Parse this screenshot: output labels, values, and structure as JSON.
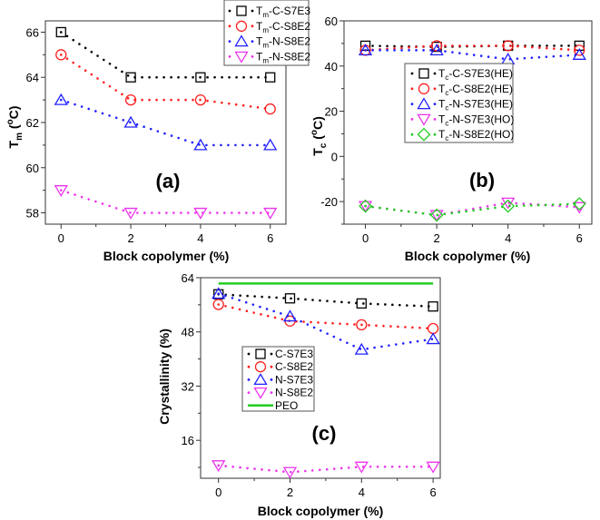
{
  "chart_data": [
    {
      "type": "line",
      "panel_label": "(a)",
      "xlabel": "Block copolymer (%)",
      "ylabel": {
        "base": "T",
        "sub": "m",
        "open": " (",
        "sup": "o",
        "close": "C)"
      },
      "x": [
        0,
        2,
        4,
        6
      ],
      "xlim": [
        -0.45,
        6.45
      ],
      "ylim": [
        57.5,
        66.5
      ],
      "xticks": [
        0,
        2,
        4,
        6
      ],
      "yticks": [
        58,
        60,
        62,
        64,
        66
      ],
      "minor_x": [
        1,
        3,
        5
      ],
      "minor_y": [
        59,
        61,
        63,
        65
      ],
      "legend_position": "top-right",
      "series": [
        {
          "name": {
            "base": "T",
            "sub": "m",
            "rest": "-C-S7E3"
          },
          "color": "#000000",
          "marker": "square",
          "values": [
            66,
            64,
            64,
            64
          ]
        },
        {
          "name": {
            "base": "T",
            "sub": "m",
            "rest": "-C-S8E2"
          },
          "color": "#ff2020",
          "marker": "circle",
          "values": [
            65,
            63,
            63,
            62.6
          ]
        },
        {
          "name": {
            "base": "T",
            "sub": "m",
            "rest": "-N-S8E2"
          },
          "color": "#2020ff",
          "marker": "triangle-up",
          "values": [
            63,
            62,
            61,
            61
          ]
        },
        {
          "name": {
            "base": "T",
            "sub": "m",
            "rest": "-N-S8E2"
          },
          "color": "#ee33ee",
          "marker": "triangle-down",
          "values": [
            59,
            58,
            58,
            58
          ]
        }
      ]
    },
    {
      "type": "line",
      "panel_label": "(b)",
      "xlabel": "Block copolymer (%)",
      "ylabel": {
        "base": "T",
        "sub": "c",
        "open": " (",
        "sup": "o",
        "close": "C)"
      },
      "x": [
        0,
        2,
        4,
        6
      ],
      "xlim": [
        -0.6,
        6.35
      ],
      "ylim": [
        -30,
        60
      ],
      "xticks": [
        0,
        2,
        4,
        6
      ],
      "yticks": [
        -20,
        0,
        20,
        40,
        60
      ],
      "minor_x": [
        1,
        3,
        5
      ],
      "minor_y": [
        -30,
        -10,
        10,
        30,
        50
      ],
      "legend_position": "center",
      "series": [
        {
          "name": {
            "base": "T",
            "sub": "c",
            "rest": "-C-S7E3(HE)"
          },
          "color": "#000000",
          "marker": "square",
          "values": [
            49,
            48.5,
            49,
            49
          ]
        },
        {
          "name": {
            "base": "T",
            "sub": "c",
            "rest": "-C-S8E2(HE)"
          },
          "color": "#ff2020",
          "marker": "circle",
          "values": [
            47,
            49,
            49,
            47
          ]
        },
        {
          "name": {
            "base": "T",
            "sub": "c",
            "rest": "-N-S7E3(HE)"
          },
          "color": "#2020ff",
          "marker": "triangle-up",
          "values": [
            47,
            47,
            43,
            45
          ]
        },
        {
          "name": {
            "base": "T",
            "sub": "c",
            "rest": "-N-S7E3(HO)"
          },
          "color": "#ee33ee",
          "marker": "triangle-down",
          "values": [
            -22,
            -26,
            -20.5,
            -22.5
          ]
        },
        {
          "name": {
            "base": "T",
            "sub": "c",
            "rest": "-N-S8E2(HO)"
          },
          "color": "#22cc22",
          "marker": "diamond",
          "values": [
            -22,
            -26,
            -22,
            -21
          ]
        }
      ]
    },
    {
      "type": "line",
      "panel_label": "(c)",
      "xlabel": "Block copolymer (%)",
      "ylabel": {
        "base": "Crystallinity (%)",
        "sub": "",
        "open": "",
        "sup": "",
        "close": ""
      },
      "x": [
        0,
        2,
        4,
        6
      ],
      "xlim": [
        -0.5,
        6.2
      ],
      "ylim": [
        4.8,
        64
      ],
      "xticks": [
        0,
        2,
        4,
        6
      ],
      "yticks": [
        16,
        32,
        48,
        64
      ],
      "minor_x": [
        1,
        3,
        5
      ],
      "minor_y": [
        8,
        24,
        40,
        56
      ],
      "legend_position": "center-left",
      "series": [
        {
          "name": {
            "base": "C-S7E3",
            "sub": "",
            "rest": ""
          },
          "color": "#000000",
          "marker": "square",
          "values": [
            59.1,
            57.9,
            56.4,
            55.5
          ]
        },
        {
          "name": {
            "base": "C-S8E2",
            "sub": "",
            "rest": ""
          },
          "color": "#ff2020",
          "marker": "circle",
          "values": [
            56.1,
            51.2,
            50.1,
            49
          ]
        },
        {
          "name": {
            "base": "N-S7E3",
            "sub": "",
            "rest": ""
          },
          "color": "#2020ff",
          "marker": "triangle-up",
          "values": [
            59.3,
            52.6,
            42.8,
            45.9
          ]
        },
        {
          "name": {
            "base": "N-S8E2",
            "sub": "",
            "rest": ""
          },
          "color": "#ee33ee",
          "marker": "triangle-down",
          "values": [
            8.6,
            6.6,
            8.2,
            8.2
          ]
        },
        {
          "name": {
            "base": "PEO",
            "sub": "",
            "rest": ""
          },
          "color": "#22cc22",
          "marker": "none",
          "line": "solid",
          "values": [
            62.3,
            62.3,
            62.3,
            62.3
          ]
        }
      ]
    }
  ]
}
